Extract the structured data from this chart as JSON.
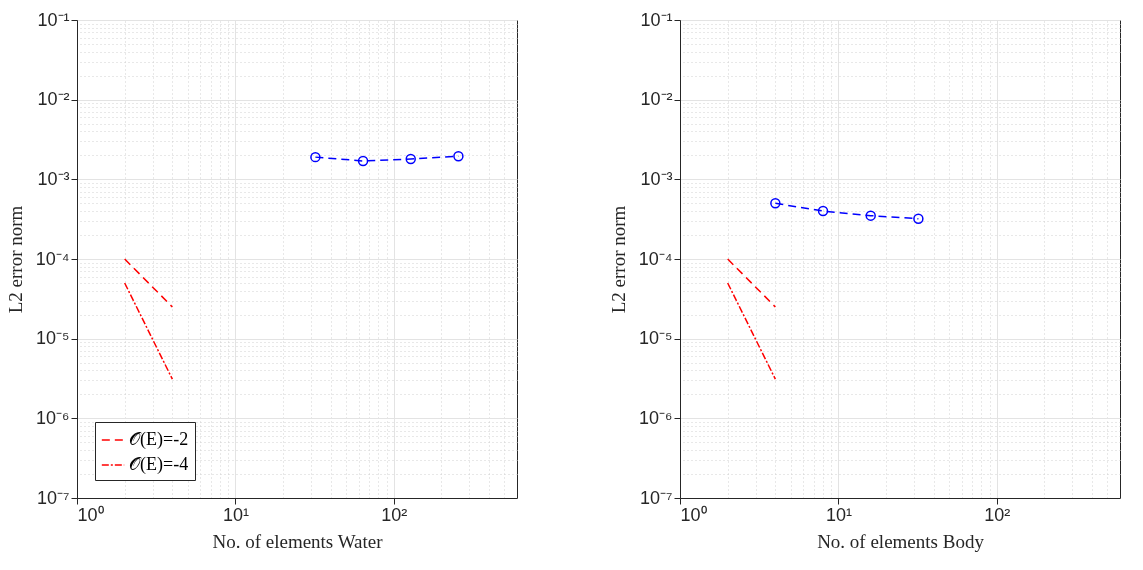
{
  "chart_data": [
    {
      "type": "line",
      "xlabel": "No. of elements Water",
      "ylabel": "L2 error norm",
      "log": "xy",
      "grid": true,
      "legend": "bottom left",
      "xlim": [
        1,
        600
      ],
      "ylim": [
        1e-07,
        0.1
      ],
      "xticks": [
        {
          "value": 1,
          "label": "10⁰"
        },
        {
          "value": 10,
          "label": "10¹"
        },
        {
          "value": 100,
          "label": "10²"
        }
      ],
      "yticks": [
        {
          "value": 1e-07,
          "label": "10⁻⁷"
        },
        {
          "value": 1e-06,
          "label": "10⁻⁶"
        },
        {
          "value": 1e-05,
          "label": "10⁻⁵"
        },
        {
          "value": 0.0001,
          "label": "10⁻⁴"
        },
        {
          "value": 0.001,
          "label": "10⁻³"
        },
        {
          "value": 0.01,
          "label": "10⁻²"
        },
        {
          "value": 0.1,
          "label": "10⁻¹"
        }
      ],
      "series": [
        {
          "color": "#0000ff",
          "x": [
            32,
            64,
            128,
            256
          ],
          "values": [
            0.0019,
            0.0017,
            0.0018,
            0.00195
          ],
          "marker": "circle",
          "line_style": "dashed"
        },
        {
          "name": "𝒪(E)=-2",
          "color": "#ff0000",
          "x": [
            2,
            4
          ],
          "values": [
            0.0001,
            2.5e-05
          ],
          "marker": "none",
          "line_style": "dashed"
        },
        {
          "name": "𝒪(E)=-4",
          "color": "#ff0000",
          "x": [
            2,
            4
          ],
          "values": [
            5e-05,
            3.1e-06
          ],
          "marker": "none",
          "line_style": "dashdot"
        }
      ]
    },
    {
      "type": "line",
      "xlabel": "No. of elements Body",
      "ylabel": "L2 error norm",
      "log": "xy",
      "grid": true,
      "legend": "bottom left",
      "xlim": [
        1,
        600
      ],
      "ylim": [
        1e-07,
        0.1
      ],
      "xticks": [
        {
          "value": 1,
          "label": "10⁰"
        },
        {
          "value": 10,
          "label": "10¹"
        },
        {
          "value": 100,
          "label": "10²"
        }
      ],
      "yticks": [
        {
          "value": 1e-07,
          "label": "10⁻⁷"
        },
        {
          "value": 1e-06,
          "label": "10⁻⁶"
        },
        {
          "value": 1e-05,
          "label": "10⁻⁵"
        },
        {
          "value": 0.0001,
          "label": "10⁻⁴"
        },
        {
          "value": 0.001,
          "label": "10⁻³"
        },
        {
          "value": 0.01,
          "label": "10⁻²"
        },
        {
          "value": 0.1,
          "label": "10⁻¹"
        }
      ],
      "series": [
        {
          "color": "#0000ff",
          "x": [
            4,
            8,
            16,
            32
          ],
          "values": [
            0.0005,
            0.0004,
            0.00035,
            0.00032
          ],
          "marker": "circle",
          "line_style": "dashed"
        },
        {
          "name": "𝒪(E)=-2",
          "color": "#ff0000",
          "x": [
            2,
            4
          ],
          "values": [
            0.0001,
            2.5e-05
          ],
          "marker": "none",
          "line_style": "dashed"
        },
        {
          "name": "𝒪(E)=-4",
          "color": "#ff0000",
          "x": [
            2,
            4
          ],
          "values": [
            5e-05,
            3.1e-06
          ],
          "marker": "none",
          "line_style": "dashdot"
        }
      ]
    }
  ]
}
